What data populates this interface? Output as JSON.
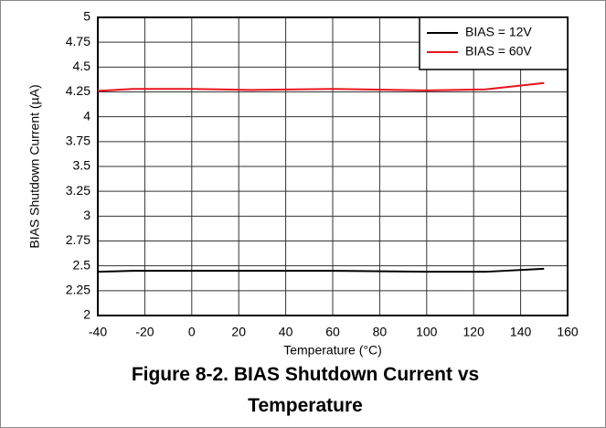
{
  "chart_data": {
    "type": "line",
    "caption": "Figure 8-2. BIAS Shutdown Current vs Temperature",
    "x_label": "Temperature (°C)",
    "y_label": "BIAS Shutdown Current (µA)",
    "x": [
      -40,
      -25,
      0,
      25,
      60,
      100,
      125,
      150
    ],
    "series": [
      {
        "name": "BIAS = 12V",
        "color": "#000000",
        "values": [
          2.44,
          2.45,
          2.45,
          2.45,
          2.45,
          2.44,
          2.44,
          2.47
        ]
      },
      {
        "name": "BIAS = 60V",
        "color": "#e8141c",
        "values": [
          4.26,
          4.28,
          4.28,
          4.27,
          4.28,
          4.265,
          4.275,
          4.34
        ]
      }
    ],
    "xlim": [
      -40,
      160
    ],
    "xticks": [
      -40,
      -20,
      0,
      20,
      40,
      60,
      80,
      100,
      120,
      140,
      160
    ],
    "ylim": [
      2,
      5
    ],
    "yticks": [
      2,
      2.25,
      2.5,
      2.75,
      3,
      3.25,
      3.5,
      3.75,
      4,
      4.25,
      4.5,
      4.75,
      5
    ],
    "grid": true,
    "legend": "upper right"
  }
}
